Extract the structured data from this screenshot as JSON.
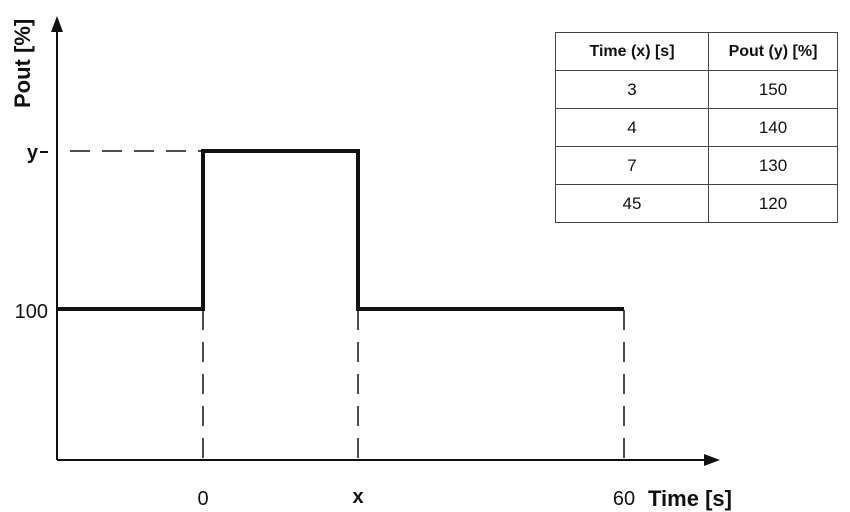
{
  "axes": {
    "y_title": "Pout [%]",
    "x_title": "Time [s]",
    "y_ticks": [
      "y",
      "100"
    ],
    "x_ticks": [
      "0",
      "x",
      "60"
    ]
  },
  "table": {
    "headers": [
      "Time (x) [s]",
      "Pout (y) [%]"
    ],
    "rows": [
      [
        "3",
        "150"
      ],
      [
        "4",
        "140"
      ],
      [
        "7",
        "130"
      ],
      [
        "45",
        "120"
      ]
    ]
  }
}
